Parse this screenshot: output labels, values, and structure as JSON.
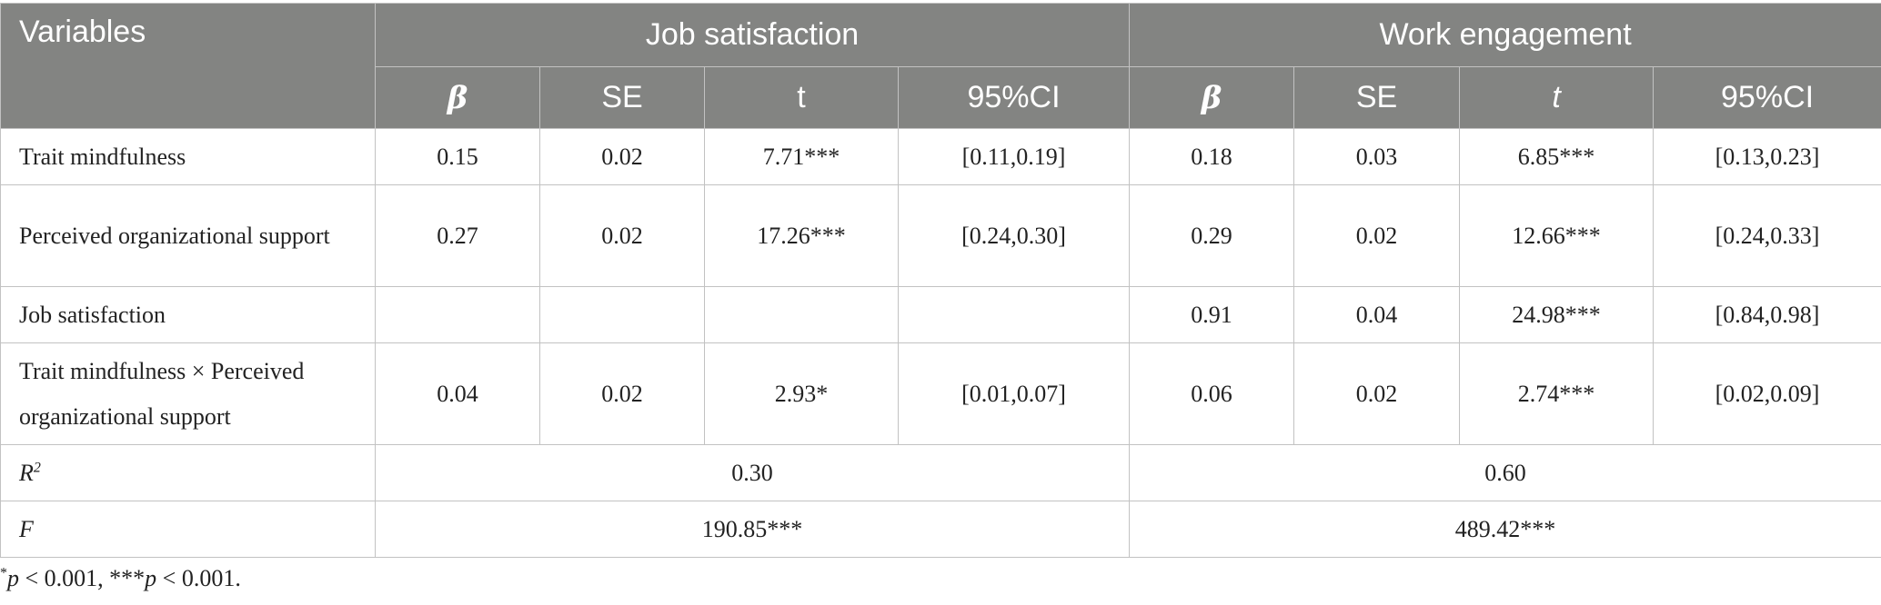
{
  "header": {
    "variables": "Variables",
    "group1": "Job satisfaction",
    "group2": "Work engagement",
    "cols": [
      "β",
      "SE",
      "t",
      "95%CI",
      "β",
      "SE",
      "t",
      "95%CI"
    ]
  },
  "rows": [
    {
      "label": "Trait mindfulness",
      "cells": [
        "0.15",
        "0.02",
        "7.71***",
        "[0.11,0.19]",
        "0.18",
        "0.03",
        "6.85***",
        "[0.13,0.23]"
      ]
    },
    {
      "label": "Perceived organizational support",
      "cells": [
        "0.27",
        "0.02",
        "17.26***",
        "[0.24,0.30]",
        "0.29",
        "0.02",
        "12.66***",
        "[0.24,0.33]"
      ]
    },
    {
      "label": "Job satisfaction",
      "cells": [
        "",
        "",
        "",
        "",
        "0.91",
        "0.04",
        "24.98***",
        "[0.84,0.98]"
      ]
    },
    {
      "label": "Trait mindfulness × Perceived organizational support",
      "cells": [
        "0.04",
        "0.02",
        "2.93*",
        "[0.01,0.07]",
        "0.06",
        "0.02",
        "2.74***",
        "[0.02,0.09]"
      ]
    }
  ],
  "r2": {
    "label": "R",
    "sup": "2",
    "js": "0.30",
    "we": "0.60"
  },
  "f": {
    "label": "F",
    "js": "190.85***",
    "we": "489.42***"
  },
  "note": {
    "star1": "*",
    "p1": "p",
    "t1": " < 0.001, ***",
    "p2": "p",
    "t2": " < 0.001."
  }
}
